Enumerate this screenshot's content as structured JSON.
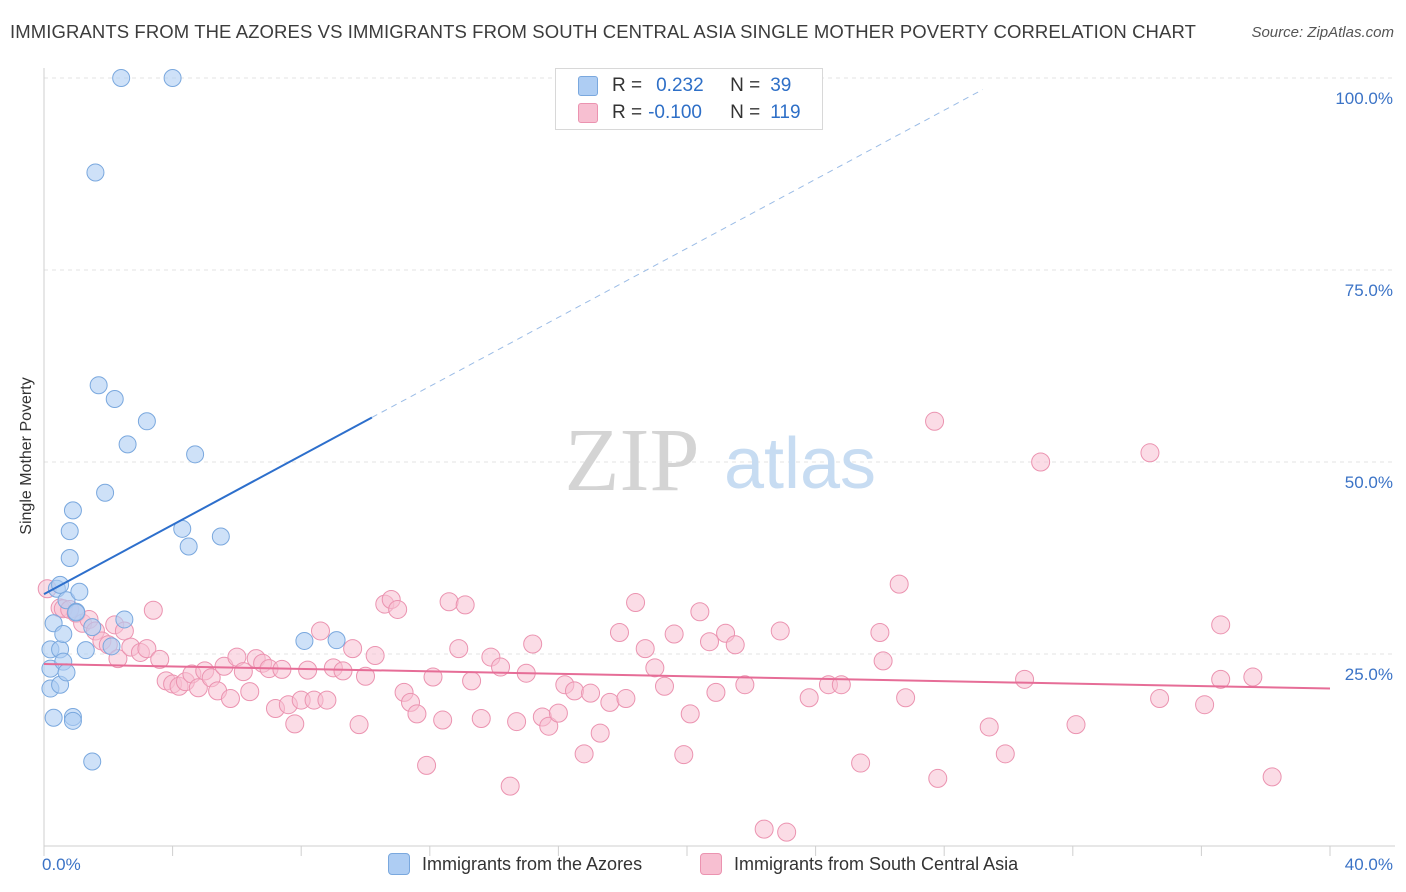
{
  "title": "IMMIGRANTS FROM THE AZORES VS IMMIGRANTS FROM SOUTH CENTRAL ASIA SINGLE MOTHER POVERTY CORRELATION CHART",
  "source": "Source: ZipAtlas.com",
  "watermark": {
    "zip": "ZIP",
    "atlas": "atlas"
  },
  "legend": {
    "r_label": "R =",
    "n_label": "N =",
    "blue": {
      "r": "0.232",
      "n": "39"
    },
    "pink": {
      "r": "-0.100",
      "n": "119"
    }
  },
  "bottom_legend": {
    "blue": "Immigrants from the Azores",
    "pink": "Immigrants from South Central Asia"
  },
  "colors": {
    "blue_fill": "#aecdf3",
    "blue_stroke": "#7aa8de",
    "blue_line": "#2d6fcc",
    "pink_fill": "#f7bfd1",
    "pink_stroke": "#eb93b0",
    "pink_line": "#e66d97",
    "axis_text": "#3b73c6"
  },
  "chart_data": {
    "type": "scatter",
    "ylabel": "Single Mother Poverty",
    "xlim": [
      0,
      40
    ],
    "ylim": [
      0,
      100
    ],
    "x_tick_labels": [
      "0.0%",
      "40.0%"
    ],
    "y_tick_labels": [
      "25.0%",
      "50.0%",
      "75.0%",
      "100.0%"
    ],
    "y_ticks": [
      25,
      50,
      75,
      100
    ],
    "series": [
      {
        "name": "Immigrants from the Azores",
        "color": "blue",
        "trend": {
          "x": [
            0,
            10.2
          ],
          "y": [
            32.8,
            55.8
          ],
          "extended": {
            "x": [
              10.2,
              29.2
            ],
            "y": [
              55.8,
              98.5
            ]
          }
        },
        "points": [
          [
            0.3,
            29.0
          ],
          [
            0.2,
            25.6
          ],
          [
            0.2,
            23.1
          ],
          [
            0.2,
            20.5
          ],
          [
            0.3,
            16.7
          ],
          [
            0.4,
            33.5
          ],
          [
            0.5,
            25.6
          ],
          [
            0.5,
            21.0
          ],
          [
            0.5,
            34.0
          ],
          [
            0.6,
            27.6
          ],
          [
            0.6,
            24.0
          ],
          [
            0.7,
            32.0
          ],
          [
            0.7,
            22.6
          ],
          [
            0.8,
            37.5
          ],
          [
            0.8,
            41.0
          ],
          [
            0.9,
            16.8
          ],
          [
            0.9,
            16.3
          ],
          [
            0.9,
            43.7
          ],
          [
            1.0,
            30.5
          ],
          [
            1.0,
            30.4
          ],
          [
            1.1,
            33.1
          ],
          [
            1.3,
            25.5
          ],
          [
            1.5,
            28.5
          ],
          [
            1.5,
            11.0
          ],
          [
            1.6,
            87.7
          ],
          [
            1.7,
            60.0
          ],
          [
            1.9,
            46.0
          ],
          [
            2.1,
            26.0
          ],
          [
            2.2,
            58.2
          ],
          [
            2.4,
            100.0
          ],
          [
            2.5,
            29.5
          ],
          [
            2.6,
            52.3
          ],
          [
            3.2,
            55.3
          ],
          [
            4.0,
            100.0
          ],
          [
            4.3,
            41.3
          ],
          [
            4.5,
            39.0
          ],
          [
            4.7,
            51.0
          ],
          [
            5.5,
            40.3
          ],
          [
            8.1,
            26.7
          ],
          [
            9.1,
            26.8
          ]
        ]
      },
      {
        "name": "Immigrants from South Central Asia",
        "color": "pink",
        "trend": {
          "x": [
            0,
            40
          ],
          "y": [
            23.7,
            20.5
          ]
        },
        "points": [
          [
            0.1,
            33.5
          ],
          [
            0.5,
            31.0
          ],
          [
            0.6,
            30.9
          ],
          [
            0.8,
            30.8
          ],
          [
            1.0,
            30.3
          ],
          [
            1.2,
            29.0
          ],
          [
            1.4,
            29.5
          ],
          [
            1.6,
            28.0
          ],
          [
            1.8,
            26.7
          ],
          [
            2.0,
            26.2
          ],
          [
            2.2,
            28.8
          ],
          [
            2.3,
            24.4
          ],
          [
            2.5,
            28.0
          ],
          [
            2.7,
            25.9
          ],
          [
            3.0,
            25.2
          ],
          [
            3.2,
            25.7
          ],
          [
            3.4,
            30.7
          ],
          [
            3.6,
            24.3
          ],
          [
            3.8,
            21.5
          ],
          [
            4.0,
            21.1
          ],
          [
            4.2,
            20.8
          ],
          [
            4.4,
            21.4
          ],
          [
            4.6,
            22.4
          ],
          [
            4.8,
            20.6
          ],
          [
            5.0,
            22.8
          ],
          [
            5.2,
            21.9
          ],
          [
            5.4,
            20.2
          ],
          [
            5.6,
            23.4
          ],
          [
            5.8,
            19.2
          ],
          [
            6.0,
            24.6
          ],
          [
            6.2,
            22.7
          ],
          [
            6.4,
            20.1
          ],
          [
            6.6,
            24.4
          ],
          [
            6.8,
            23.8
          ],
          [
            7.0,
            23.1
          ],
          [
            7.2,
            17.9
          ],
          [
            7.4,
            23.0
          ],
          [
            7.6,
            18.4
          ],
          [
            7.8,
            15.9
          ],
          [
            8.0,
            19.0
          ],
          [
            8.2,
            22.9
          ],
          [
            8.4,
            19.0
          ],
          [
            8.6,
            28.0
          ],
          [
            8.8,
            19.0
          ],
          [
            9.0,
            23.2
          ],
          [
            9.3,
            22.8
          ],
          [
            9.6,
            25.7
          ],
          [
            9.8,
            15.8
          ],
          [
            10.0,
            22.1
          ],
          [
            10.3,
            24.8
          ],
          [
            10.6,
            31.5
          ],
          [
            10.8,
            32.1
          ],
          [
            11.0,
            30.8
          ],
          [
            11.2,
            20.0
          ],
          [
            11.4,
            18.7
          ],
          [
            11.6,
            17.2
          ],
          [
            11.9,
            10.5
          ],
          [
            12.1,
            22.0
          ],
          [
            12.4,
            16.4
          ],
          [
            12.6,
            31.8
          ],
          [
            12.9,
            25.7
          ],
          [
            13.1,
            31.4
          ],
          [
            13.3,
            21.5
          ],
          [
            13.6,
            16.6
          ],
          [
            13.9,
            24.6
          ],
          [
            14.2,
            23.3
          ],
          [
            14.5,
            7.8
          ],
          [
            14.7,
            16.2
          ],
          [
            15.0,
            22.5
          ],
          [
            15.2,
            26.3
          ],
          [
            15.5,
            16.8
          ],
          [
            15.7,
            15.6
          ],
          [
            16.0,
            17.3
          ],
          [
            16.2,
            21.0
          ],
          [
            16.5,
            20.2
          ],
          [
            16.8,
            12.0
          ],
          [
            17.0,
            19.9
          ],
          [
            17.3,
            14.7
          ],
          [
            17.6,
            18.7
          ],
          [
            17.9,
            27.8
          ],
          [
            18.1,
            19.2
          ],
          [
            18.4,
            31.7
          ],
          [
            18.7,
            25.7
          ],
          [
            19.0,
            23.2
          ],
          [
            19.3,
            20.8
          ],
          [
            19.6,
            27.6
          ],
          [
            19.9,
            11.9
          ],
          [
            20.1,
            17.2
          ],
          [
            20.4,
            30.5
          ],
          [
            20.7,
            26.6
          ],
          [
            20.9,
            20.0
          ],
          [
            21.2,
            27.7
          ],
          [
            21.5,
            26.2
          ],
          [
            21.8,
            21.0
          ],
          [
            22.4,
            2.2
          ],
          [
            23.1,
            1.8
          ],
          [
            22.9,
            28.0
          ],
          [
            23.8,
            19.3
          ],
          [
            24.4,
            21.0
          ],
          [
            24.8,
            21.0
          ],
          [
            25.4,
            10.8
          ],
          [
            26.0,
            27.8
          ],
          [
            26.1,
            24.1
          ],
          [
            26.6,
            34.1
          ],
          [
            26.8,
            19.3
          ],
          [
            27.7,
            55.3
          ],
          [
            27.8,
            8.8
          ],
          [
            29.4,
            15.5
          ],
          [
            29.9,
            12.0
          ],
          [
            30.5,
            21.7
          ],
          [
            31.0,
            50.0
          ],
          [
            32.1,
            15.8
          ],
          [
            34.4,
            51.2
          ],
          [
            34.7,
            19.2
          ],
          [
            36.1,
            18.4
          ],
          [
            36.6,
            28.8
          ],
          [
            36.6,
            21.7
          ],
          [
            37.6,
            22.0
          ],
          [
            38.2,
            9.0
          ]
        ]
      }
    ]
  }
}
